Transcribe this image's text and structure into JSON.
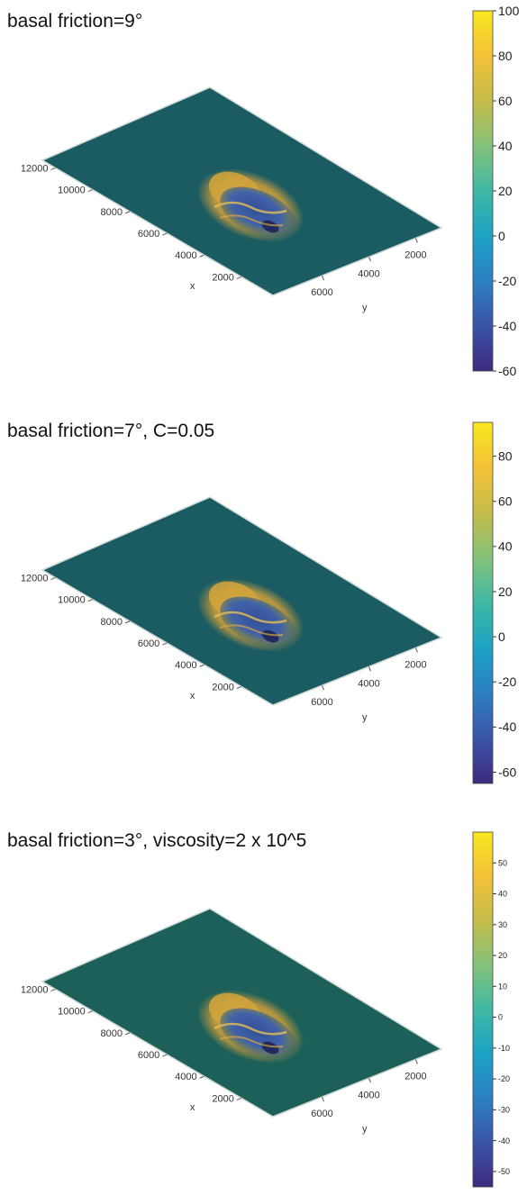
{
  "chart_data": [
    {
      "type": "heatmap",
      "title": "basal friction=9°",
      "xlabel": "x",
      "ylabel": "y",
      "x_ticks": [
        "12000",
        "10000",
        "8000",
        "6000",
        "4000",
        "2000"
      ],
      "y_ticks": [
        "2000",
        "4000",
        "6000"
      ],
      "colorbar": {
        "min": -60,
        "max": 100,
        "ticks": [
          "100",
          "80",
          "60",
          "40",
          "20",
          "0",
          "-20",
          "-40",
          "-60"
        ]
      },
      "surface_base_color": "#1b5c62"
    },
    {
      "type": "heatmap",
      "title": "basal friction=7°, C=0.05",
      "xlabel": "x",
      "ylabel": "y",
      "x_ticks": [
        "12000",
        "10000",
        "8000",
        "6000",
        "4000",
        "2000"
      ],
      "y_ticks": [
        "2000",
        "4000",
        "6000"
      ],
      "colorbar": {
        "min": -65,
        "max": 95,
        "ticks": [
          "80",
          "60",
          "40",
          "20",
          "0",
          "-20",
          "-40",
          "-60"
        ]
      },
      "surface_base_color": "#1b5c62"
    },
    {
      "type": "heatmap",
      "title": "basal friction=3°, viscosity=2 x 10^5",
      "xlabel": "x",
      "ylabel": "y",
      "x_ticks": [
        "12000",
        "10000",
        "8000",
        "6000",
        "4000",
        "2000"
      ],
      "y_ticks": [
        "2000",
        "4000",
        "6000"
      ],
      "colorbar": {
        "min": -55,
        "max": 60,
        "ticks": [
          "50",
          "40",
          "30",
          "20",
          "10",
          "0",
          "-10",
          "-20",
          "-30",
          "-40",
          "-50"
        ]
      },
      "surface_base_color": "#1c6059"
    }
  ],
  "colormap": [
    "#3d2a7e",
    "#3a54a8",
    "#2c7fc4",
    "#1ba3c4",
    "#3fb8a4",
    "#84c27a",
    "#c5bc4a",
    "#f3c238",
    "#f8e71f"
  ]
}
